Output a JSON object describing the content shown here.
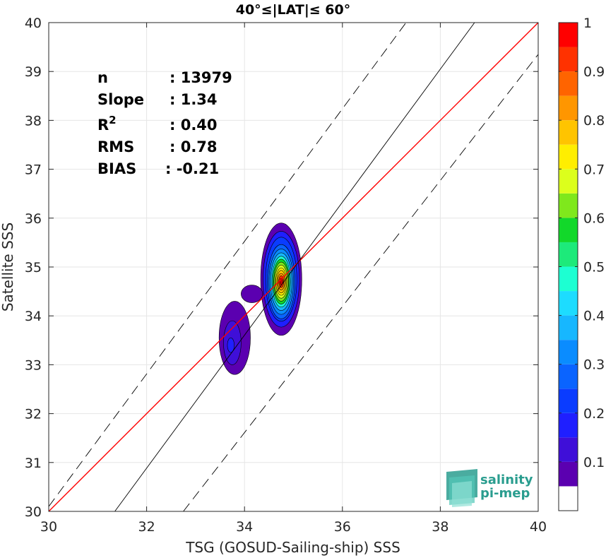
{
  "chart_data": {
    "type": "contour",
    "title": "40°≤|LAT|≤ 60°",
    "xlabel": "TSG (GOSUD-Sailing-ship) SSS",
    "ylabel": "Satellite SSS",
    "xlim": [
      30,
      40
    ],
    "ylim": [
      30,
      40
    ],
    "xticks": [
      "30",
      "32",
      "34",
      "36",
      "38",
      "40"
    ],
    "yticks": [
      "30",
      "31",
      "32",
      "33",
      "34",
      "35",
      "36",
      "37",
      "38",
      "39",
      "40"
    ],
    "grid": true,
    "stats": [
      {
        "label": "n",
        "value": ": 13979"
      },
      {
        "label": "Slope",
        "value": ": 1.34"
      },
      {
        "label": "R",
        "sup": "2",
        "value": ": 0.40"
      },
      {
        "label": "RMS",
        "value": ": 0.78"
      },
      {
        "label": "BIAS",
        "value": ": -0.21"
      }
    ],
    "lines": [
      {
        "name": "one-to-one",
        "color": "#ff0000",
        "style": "solid",
        "points": [
          [
            30,
            30
          ],
          [
            40,
            40
          ]
        ]
      },
      {
        "name": "regression",
        "color": "#000000",
        "style": "solid",
        "points": [
          [
            31.35,
            30
          ],
          [
            38.7,
            40
          ]
        ]
      },
      {
        "name": "upper-bound",
        "color": "#000000",
        "style": "dashed",
        "points": [
          [
            30,
            30.1
          ],
          [
            37.3,
            40
          ]
        ]
      },
      {
        "name": "lower-bound",
        "color": "#000000",
        "style": "dashed",
        "points": [
          [
            32.75,
            30
          ],
          [
            40,
            39.35
          ]
        ]
      }
    ],
    "density_peak": {
      "x": 34.75,
      "y": 34.7
    },
    "contour_levels": [
      0.05,
      0.1,
      0.15,
      0.2,
      0.25,
      0.3,
      0.35,
      0.4,
      0.45,
      0.5,
      0.55,
      0.6,
      0.65,
      0.7,
      0.75,
      0.8,
      0.85,
      0.9,
      0.95
    ],
    "colorbar": {
      "ticks": [
        "0.1",
        "0.2",
        "0.3",
        "0.4",
        "0.5",
        "0.6",
        "0.7",
        "0.8",
        "0.9",
        "1"
      ],
      "tick_values": [
        0.1,
        0.2,
        0.3,
        0.4,
        0.5,
        0.6,
        0.7,
        0.8,
        0.9,
        1.0
      ],
      "range": [
        0,
        1
      ],
      "colors": [
        "#ffffff",
        "#5b00b0",
        "#3f0fd8",
        "#1f1fff",
        "#0a3cff",
        "#0a64ff",
        "#0a8cff",
        "#17b7ff",
        "#1ddcff",
        "#1dffd2",
        "#1dea7a",
        "#12d82a",
        "#7fe81c",
        "#dcff1c",
        "#ffee00",
        "#ffc400",
        "#ff9600",
        "#ff6400",
        "#ff3200",
        "#ff0000",
        "#c80000",
        "#8b0000"
      ]
    },
    "logo": {
      "line1": "salinity",
      "line2": "pi-mep"
    }
  }
}
